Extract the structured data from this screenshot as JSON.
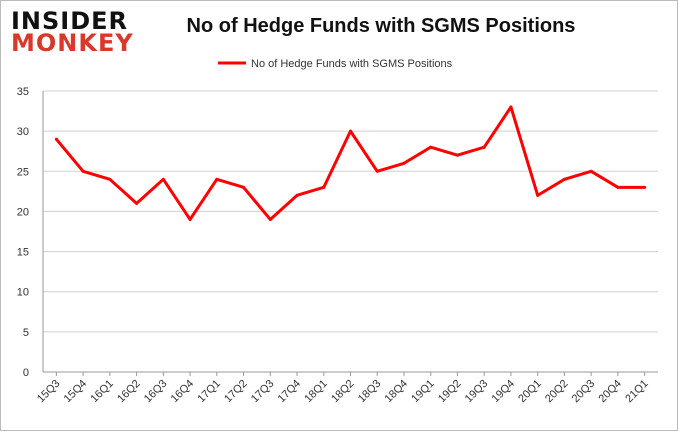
{
  "logo": {
    "line1": "INSIDER",
    "line2": "MONKEY"
  },
  "chart_data": {
    "type": "line",
    "title": "No of Hedge Funds with SGMS Positions",
    "categories": [
      "15Q3",
      "15Q4",
      "16Q1",
      "16Q2",
      "16Q3",
      "16Q4",
      "17Q1",
      "17Q2",
      "17Q3",
      "17Q4",
      "18Q1",
      "18Q2",
      "18Q3",
      "18Q4",
      "19Q1",
      "19Q2",
      "19Q3",
      "19Q4",
      "20Q1",
      "20Q2",
      "20Q3",
      "20Q4",
      "21Q1"
    ],
    "series": [
      {
        "name": "No of Hedge Funds with SGMS Positions",
        "color": "#ff0000",
        "values": [
          29,
          25,
          24,
          21,
          24,
          19,
          24,
          23,
          19,
          22,
          23,
          30,
          25,
          26,
          28,
          27,
          28,
          33,
          22,
          24,
          25,
          23,
          23
        ]
      }
    ],
    "ylim": [
      0,
      35
    ],
    "yticks": [
      0,
      5,
      10,
      15,
      20,
      25,
      30,
      35
    ],
    "grid": true,
    "legend": "top-center",
    "xlabel": "",
    "ylabel": ""
  }
}
